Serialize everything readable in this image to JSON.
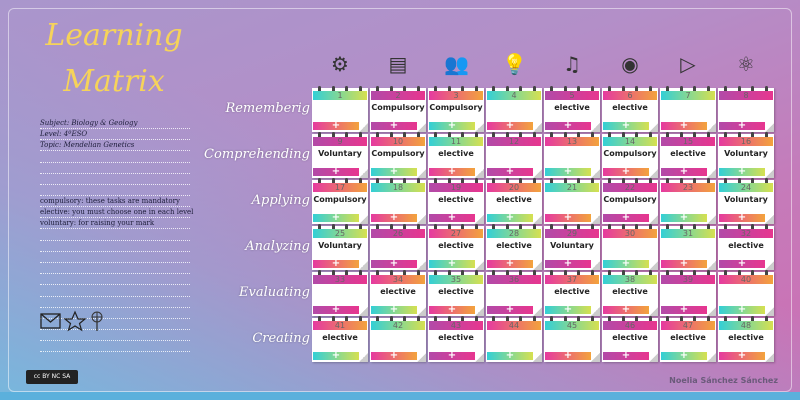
{
  "title": {
    "line1": "Learning",
    "line2": "Matrix"
  },
  "info": {
    "subject": "Subject: Biology & Geology",
    "level": "Level: 4ºESO",
    "topic": "Topic: Mendelian Genetics",
    "legend": [
      "compulsory: these tasks are mandatory",
      "elective: you must choose one in each level",
      "voluntary: for raising your mark"
    ]
  },
  "column_icons": [
    "gears-icon",
    "document-icon",
    "group-icon",
    "lightbulb-icon",
    "music-note-icon",
    "eye-icon",
    "play-icon",
    "atom-icon"
  ],
  "rows": [
    "Rememberig",
    "Comprehending",
    "Applying",
    "Analyzing",
    "Evaluating",
    "Creating"
  ],
  "cards": [
    {
      "n": "1",
      "label": ""
    },
    {
      "n": "2",
      "label": "Compulsory"
    },
    {
      "n": "3",
      "label": "Compulsory"
    },
    {
      "n": "4",
      "label": ""
    },
    {
      "n": "5",
      "label": "elective"
    },
    {
      "n": "6",
      "label": "elective"
    },
    {
      "n": "7",
      "label": ""
    },
    {
      "n": "8",
      "label": ""
    },
    {
      "n": "9",
      "label": "Voluntary"
    },
    {
      "n": "10",
      "label": "Compulsory"
    },
    {
      "n": "11",
      "label": "elective"
    },
    {
      "n": "12",
      "label": ""
    },
    {
      "n": "13",
      "label": ""
    },
    {
      "n": "14",
      "label": "Compulsory"
    },
    {
      "n": "15",
      "label": "elective"
    },
    {
      "n": "16",
      "label": "Voluntary"
    },
    {
      "n": "17",
      "label": "Compulsory"
    },
    {
      "n": "18",
      "label": ""
    },
    {
      "n": "19",
      "label": "elective"
    },
    {
      "n": "20",
      "label": "elective"
    },
    {
      "n": "21",
      "label": ""
    },
    {
      "n": "22",
      "label": "Compulsory"
    },
    {
      "n": "23",
      "label": ""
    },
    {
      "n": "24",
      "label": "Voluntary"
    },
    {
      "n": "25",
      "label": "Voluntary"
    },
    {
      "n": "26",
      "label": ""
    },
    {
      "n": "27",
      "label": "elective"
    },
    {
      "n": "28",
      "label": "elective"
    },
    {
      "n": "29",
      "label": "Voluntary"
    },
    {
      "n": "30",
      "label": ""
    },
    {
      "n": "31",
      "label": ""
    },
    {
      "n": "32",
      "label": "elective"
    },
    {
      "n": "33",
      "label": ""
    },
    {
      "n": "34",
      "label": "elective"
    },
    {
      "n": "35",
      "label": "elective"
    },
    {
      "n": "36",
      "label": ""
    },
    {
      "n": "37",
      "label": "elective"
    },
    {
      "n": "38",
      "label": "elective"
    },
    {
      "n": "39",
      "label": ""
    },
    {
      "n": "40",
      "label": ""
    },
    {
      "n": "41",
      "label": "elective"
    },
    {
      "n": "42",
      "label": ""
    },
    {
      "n": "43",
      "label": "elective"
    },
    {
      "n": "44",
      "label": ""
    },
    {
      "n": "45",
      "label": ""
    },
    {
      "n": "46",
      "label": "elective"
    },
    {
      "n": "47",
      "label": "elective"
    },
    {
      "n": "48",
      "label": "elective"
    }
  ],
  "plus": "+",
  "bottom_icons": [
    "envelope-icon",
    "star-icon",
    "pinwheel-icon"
  ],
  "license": "cc BY NC SA",
  "author": "Noelia Sánchez Sánchez",
  "colors": {
    "title": "#f6d35a",
    "footer": "#5bb0dc"
  }
}
